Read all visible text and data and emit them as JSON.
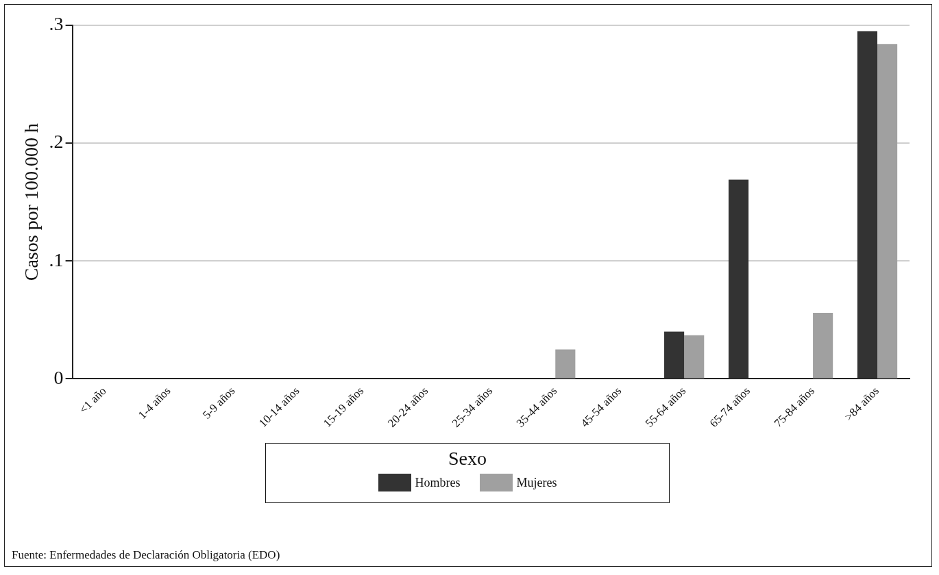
{
  "chart_data": {
    "type": "bar",
    "categories": [
      "<1 año",
      "1-4 años",
      "5-9 años",
      "10-14 años",
      "15-19 años",
      "20-24 años",
      "25-34 años",
      "35-44 años",
      "45-54 años",
      "55-64 años",
      "65-74 años",
      "75-84 años",
      ">84 años"
    ],
    "series": [
      {
        "name": "Hombres",
        "color": "#333333",
        "values": [
          0,
          0,
          0,
          0,
          0,
          0,
          0,
          0,
          0,
          0.04,
          0.169,
          0,
          0.295
        ]
      },
      {
        "name": "Mujeres",
        "color": "#a0a0a0",
        "values": [
          0,
          0,
          0,
          0,
          0,
          0,
          0,
          0.025,
          0,
          0.037,
          0,
          0.056,
          0.284
        ]
      }
    ],
    "ylabel": "Casos por 100.000 h",
    "ylim": [
      0,
      0.3
    ],
    "yticks": [
      {
        "value": 0,
        "label": "0"
      },
      {
        "value": 0.1,
        "label": ".1"
      },
      {
        "value": 0.2,
        "label": ".2"
      },
      {
        "value": 0.3,
        "label": ".3"
      }
    ],
    "grid": "y",
    "legend": "bottom",
    "legend_title": "Sexo",
    "annotations": [
      "Fuente: Enfermedades de Declaración Obligatoria (EDO)"
    ]
  }
}
